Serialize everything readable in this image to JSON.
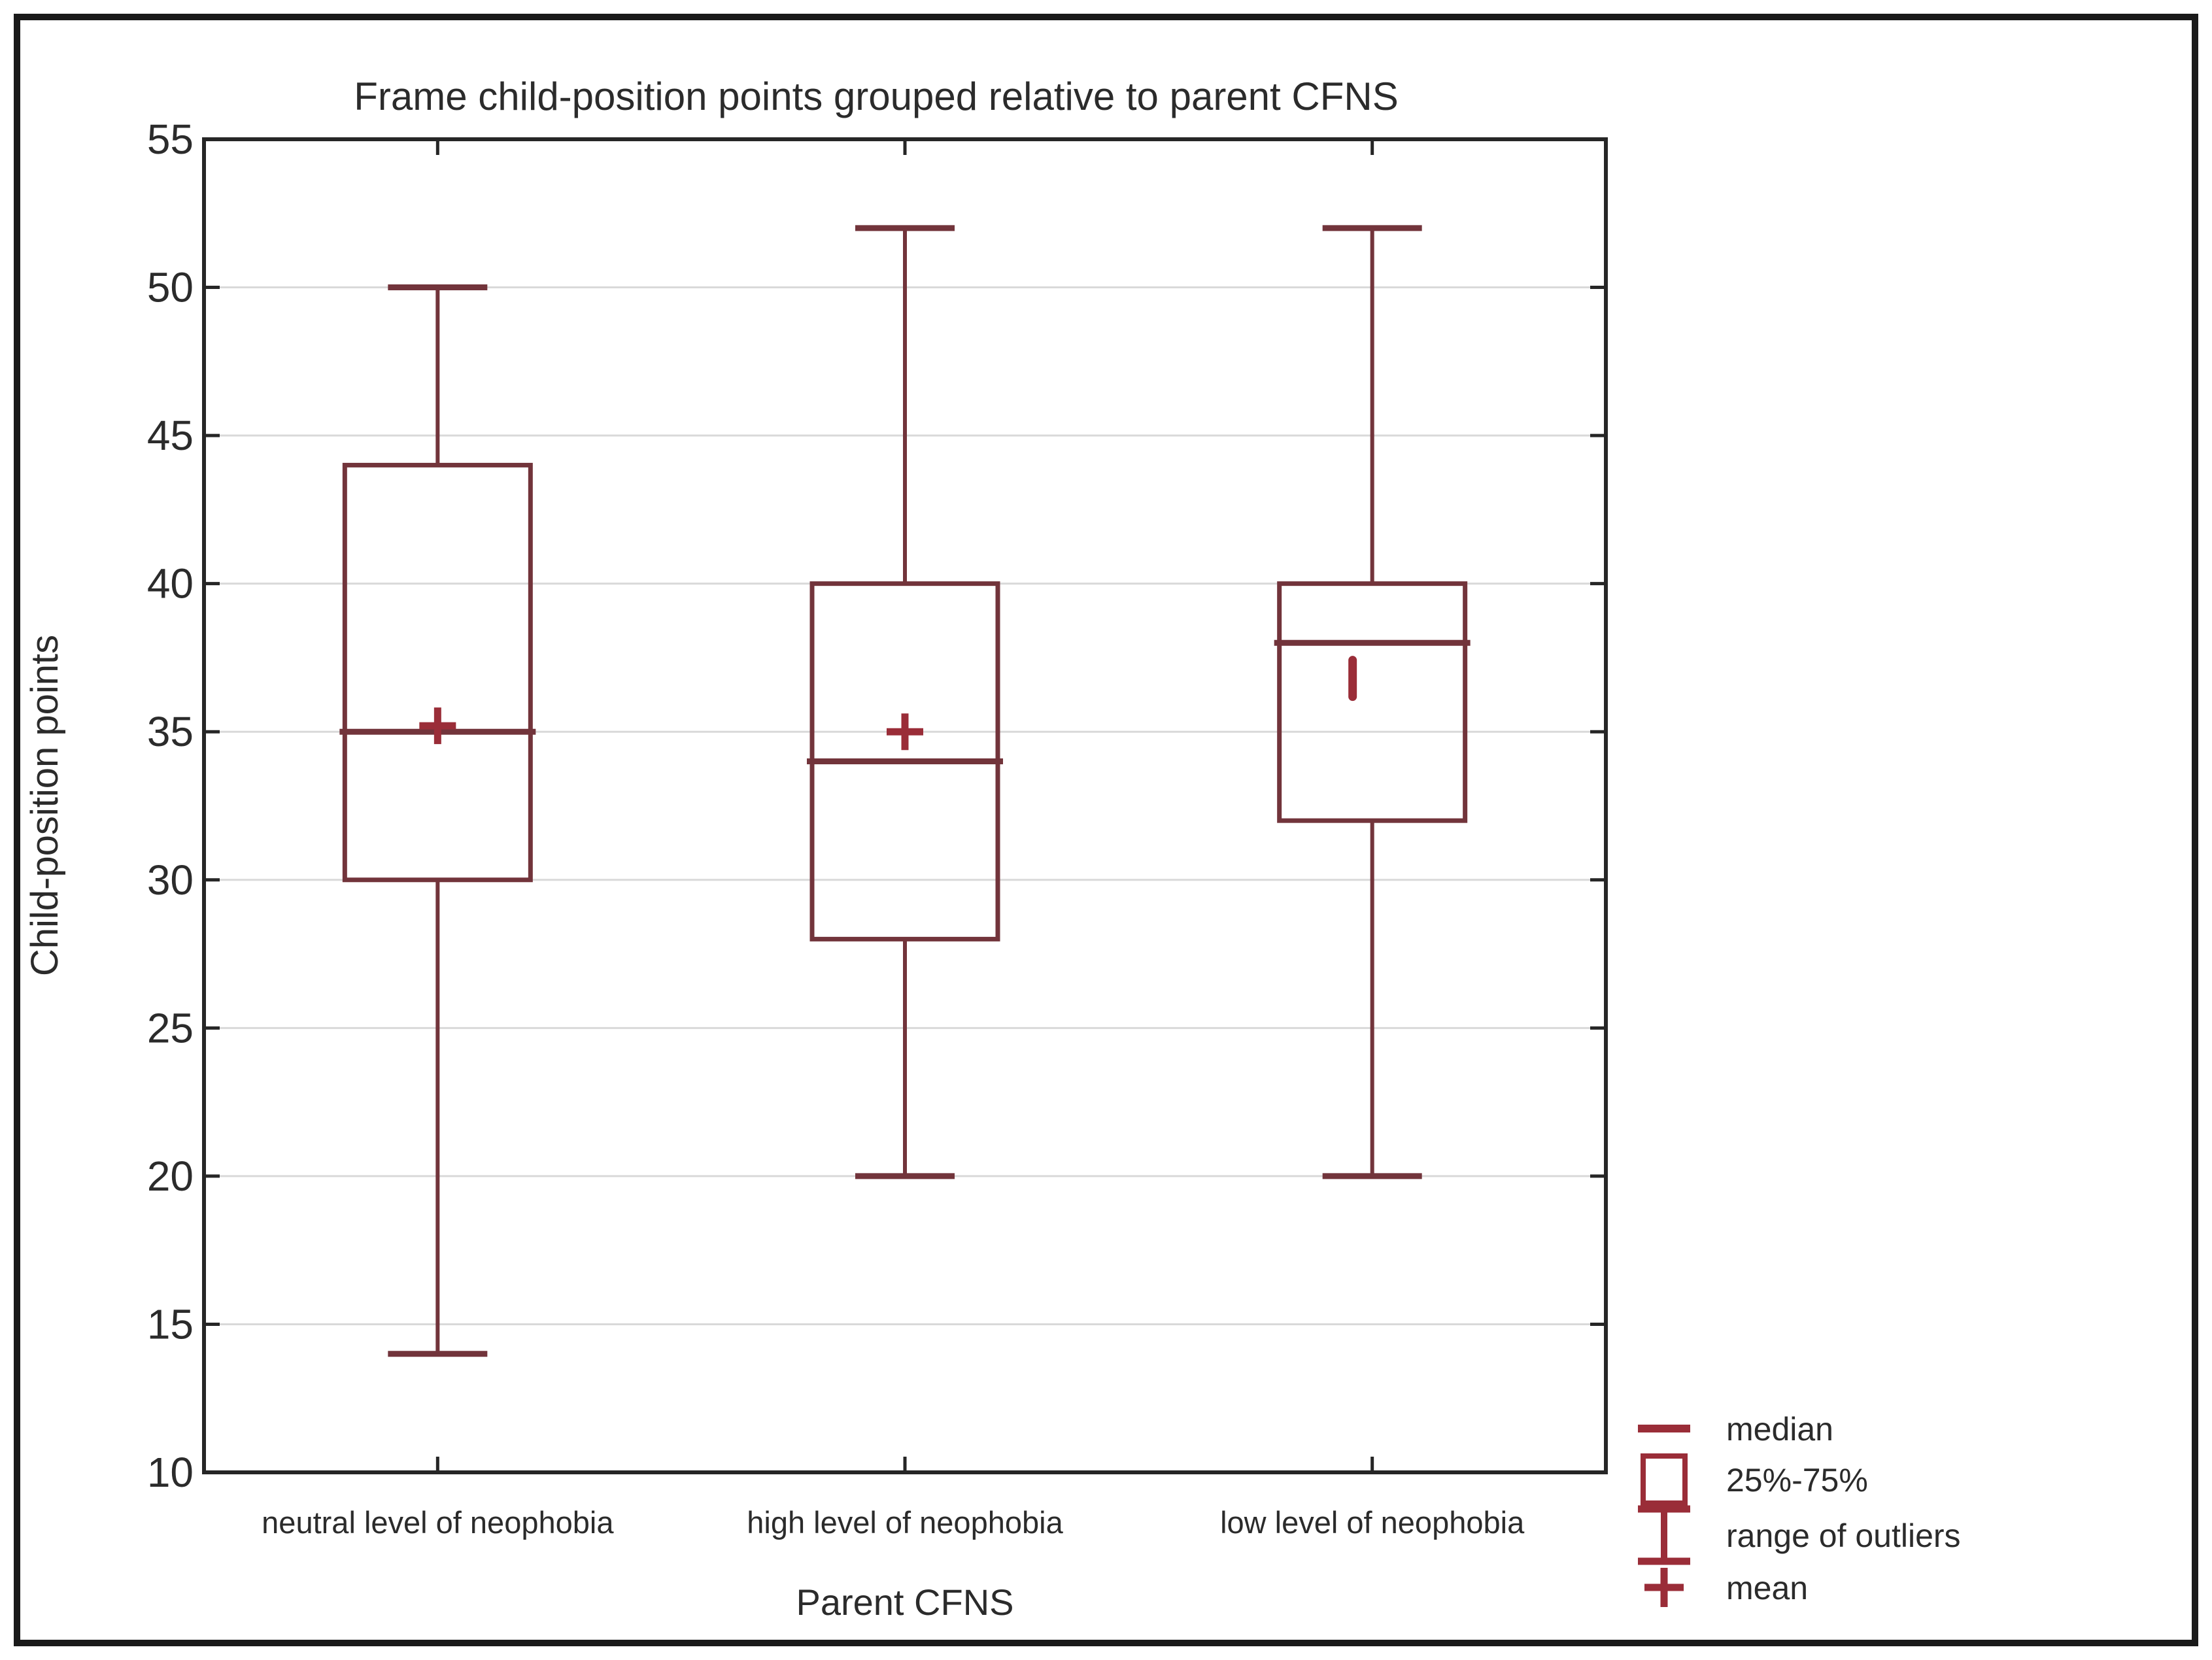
{
  "figure": {
    "background": "#ffffff",
    "border_color": "#1a1a1a"
  },
  "chart_data": {
    "type": "boxplot",
    "title": "Frame child-position points grouped relative to parent CFNS",
    "xlabel": "Parent CFNS",
    "ylabel": "Child-position points",
    "ylim": [
      10,
      55
    ],
    "ytick_step": 5,
    "grid": "horizontal",
    "legend_position": "bottom-right",
    "categories": [
      "neutral level of neophobia",
      "high level of neophobia",
      "low level of neophobia"
    ],
    "series": [
      {
        "category": "neutral level of neophobia",
        "whisker_low": 14,
        "q1": 30,
        "median": 35,
        "q3": 44,
        "whisker_high": 50,
        "mean": 35.2,
        "mean_marker": "plus"
      },
      {
        "category": "high level of neophobia",
        "whisker_low": 20,
        "q1": 28,
        "median": 34,
        "q3": 40,
        "whisker_high": 52,
        "mean": 35.0,
        "mean_marker": "plus"
      },
      {
        "category": "low level of neophobia",
        "whisker_low": 20,
        "q1": 32,
        "median": 38,
        "q3": 40,
        "whisker_high": 52,
        "mean": 36.8,
        "mean_marker": "vertical-dash"
      }
    ],
    "legend": [
      {
        "symbol": "median-line",
        "label": "median"
      },
      {
        "symbol": "box",
        "label": "25%-75%"
      },
      {
        "symbol": "whisker-range",
        "label": "range of outliers"
      },
      {
        "symbol": "plus",
        "label": "mean"
      }
    ],
    "colors": {
      "box_stroke": "#72343b",
      "accent": "#9a2d38",
      "grid": "#d9d9d9",
      "axis": "#262626",
      "text": "#2b2b2b"
    }
  }
}
